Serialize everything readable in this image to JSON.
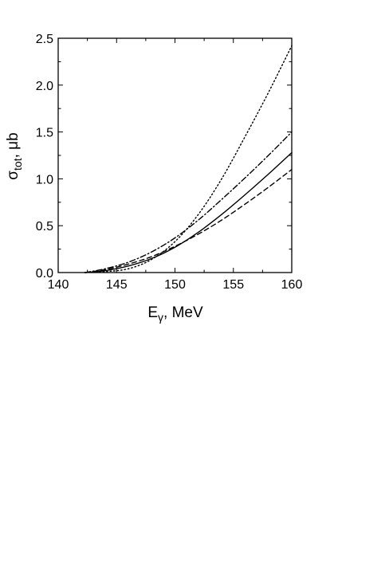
{
  "chart_data": {
    "type": "line",
    "title": "",
    "xlabel": {
      "main": "E",
      "sub": "γ",
      "rest": ", MeV"
    },
    "ylabel": {
      "main": "σ",
      "sub": "tot",
      "rest": ", μb"
    },
    "xlim": [
      140,
      160
    ],
    "ylim": [
      0,
      2.5
    ],
    "x_ticks": [
      140,
      145,
      150,
      155,
      160
    ],
    "x_tick_labels": [
      "140",
      "145",
      "150",
      "155",
      "160"
    ],
    "y_ticks": [
      0,
      0.5,
      1.0,
      1.5,
      2.0,
      2.5
    ],
    "y_tick_labels": [
      "0.0",
      "0.5",
      "1.0",
      "1.5",
      "2.0",
      "2.5"
    ],
    "grid": false,
    "legend": "none",
    "series": [
      {
        "style": "solid",
        "x": [
          142.3,
          144,
          146,
          148,
          150,
          152,
          154,
          156,
          158,
          160
        ],
        "y": [
          0.0,
          0.02,
          0.07,
          0.15,
          0.27,
          0.43,
          0.62,
          0.83,
          1.05,
          1.28
        ]
      },
      {
        "style": "dashed",
        "x": [
          142.3,
          144,
          146,
          148,
          150,
          152,
          154,
          156,
          158,
          160
        ],
        "y": [
          0.0,
          0.03,
          0.09,
          0.17,
          0.28,
          0.41,
          0.56,
          0.73,
          0.91,
          1.1
        ]
      },
      {
        "style": "dotted",
        "x": [
          142.3,
          144,
          146,
          148,
          150,
          152,
          154,
          156,
          158,
          160
        ],
        "y": [
          0.0,
          0.01,
          0.04,
          0.14,
          0.33,
          0.62,
          1.0,
          1.45,
          1.92,
          2.42
        ]
      },
      {
        "style": "dashdot",
        "x": [
          142.3,
          144,
          146,
          148,
          150,
          152,
          154,
          156,
          158,
          160
        ],
        "y": [
          0.0,
          0.04,
          0.11,
          0.22,
          0.37,
          0.56,
          0.78,
          1.01,
          1.25,
          1.5
        ]
      }
    ]
  }
}
